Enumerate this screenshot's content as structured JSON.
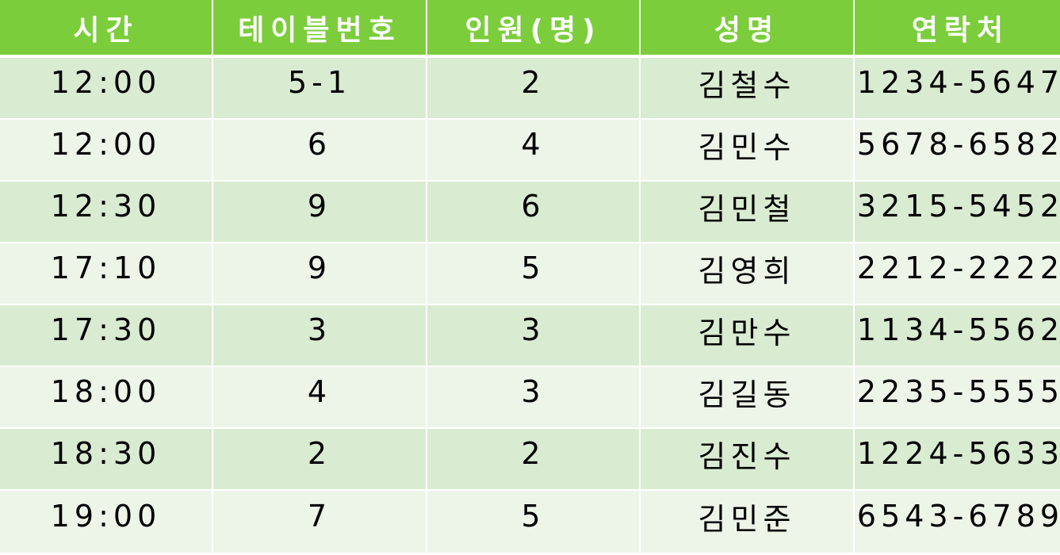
{
  "headers": [
    "시간",
    "테이블번호",
    "인원(명)",
    "성명",
    "연락처"
  ],
  "rows": [
    [
      "12:00",
      "5-1",
      "2",
      "김철수",
      "1234-5647"
    ],
    [
      "12:00",
      "6",
      "4",
      "김민수",
      "5678-6582"
    ],
    [
      "12:30",
      "9",
      "6",
      "김민철",
      "3215-5452"
    ],
    [
      "17:10",
      "9",
      "5",
      "김영희",
      "2212-2222"
    ],
    [
      "17:30",
      "3",
      "3",
      "김만수",
      "1134-5562"
    ],
    [
      "18:00",
      "4",
      "3",
      "김길동",
      "2235-5555"
    ],
    [
      "18:30",
      "2",
      "2",
      "김진수",
      "1224-5633"
    ],
    [
      "19:00",
      "7",
      "5",
      "김민준",
      "6543-6789"
    ]
  ],
  "colors": {
    "header_bg": "#7ccd3c",
    "header_text": "#ffffff",
    "row_odd_bg": "#d9ebd1",
    "row_even_bg": "#ecf5e8"
  }
}
